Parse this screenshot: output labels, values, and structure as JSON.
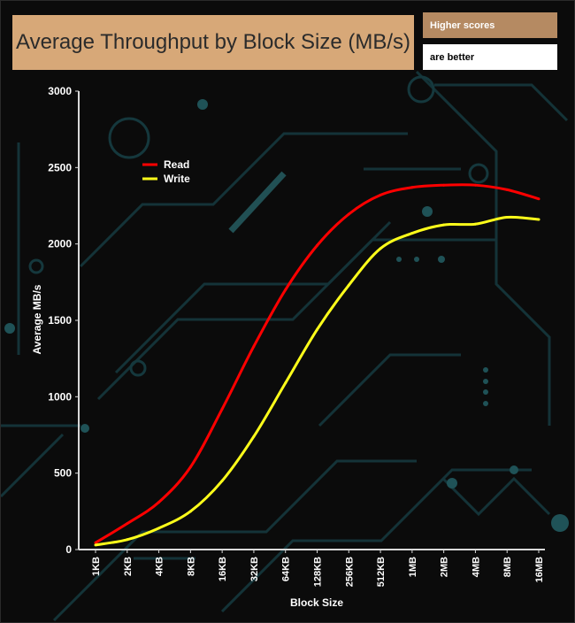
{
  "header": {
    "title": "Average Throughput by Block Size (MB/s)",
    "note_line1": "Higher scores",
    "note_line2": "are better"
  },
  "colors": {
    "title_bg": "#d7a878",
    "note_bg": "#b58a62",
    "background": "#0b0b0b",
    "circuit": "#15383d",
    "read": "#ff0000",
    "write": "#ffff1a"
  },
  "chart_data": {
    "type": "line",
    "title": "Average Throughput by Block Size (MB/s)",
    "xlabel": "Block Size",
    "ylabel": "Average MB/s",
    "categories": [
      "1KB",
      "2KB",
      "4KB",
      "8KB",
      "16KB",
      "32KB",
      "64KB",
      "128KB",
      "256KB",
      "512KB",
      "1MB",
      "2MB",
      "4MB",
      "8MB",
      "16MB"
    ],
    "ylim": [
      0,
      3000
    ],
    "yticks": [
      0,
      500,
      1000,
      1500,
      2000,
      2500,
      3000
    ],
    "legend_position": "top-left",
    "grid": false,
    "series": [
      {
        "name": "Read",
        "color": "#ff0000",
        "values": [
          45,
          170,
          310,
          540,
          920,
          1330,
          1700,
          1990,
          2195,
          2320,
          2370,
          2385,
          2385,
          2355,
          2295
        ]
      },
      {
        "name": "Write",
        "color": "#ffff1a",
        "values": [
          30,
          65,
          140,
          250,
          450,
          740,
          1090,
          1440,
          1730,
          1970,
          2070,
          2125,
          2130,
          2175,
          2160
        ]
      }
    ]
  }
}
